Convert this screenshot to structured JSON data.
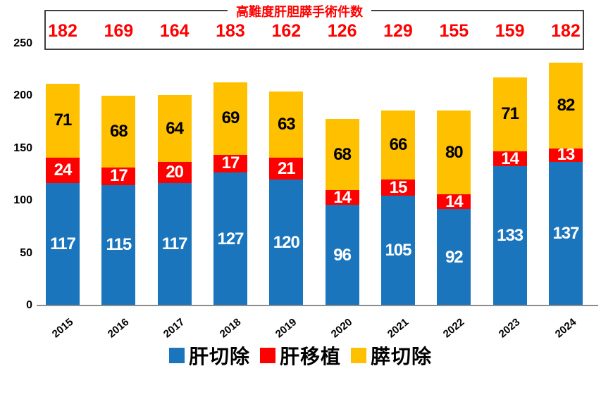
{
  "colors": {
    "background": "#FFFFFF",
    "box_border": "#3F3F3F",
    "title_text": "#FF0000",
    "annotation_text": "#FF0000",
    "axis_line": "#8C8C8C",
    "tick_label": "#000000"
  },
  "chart_data": {
    "type": "bar",
    "stacked": true,
    "title": "高難度肝胆膵手術件数",
    "categories": [
      "2015",
      "2016",
      "2017",
      "2018",
      "2019",
      "2020",
      "2021",
      "2022",
      "2023",
      "2024"
    ],
    "series": [
      {
        "name": "肝切除",
        "color": "#1B75BC",
        "label_color": "#FFFFFF",
        "values": [
          117,
          115,
          117,
          127,
          120,
          96,
          105,
          92,
          133,
          137
        ]
      },
      {
        "name": "肝移植",
        "color": "#FF0000",
        "label_color": "#FFFFFF",
        "values": [
          24,
          17,
          20,
          17,
          21,
          14,
          15,
          14,
          14,
          13
        ]
      },
      {
        "name": "膵切除",
        "color": "#FFC000",
        "label_color": "#000000",
        "values": [
          71,
          68,
          64,
          69,
          63,
          68,
          66,
          80,
          71,
          82
        ]
      }
    ],
    "annotation_values": [
      182,
      169,
      164,
      183,
      162,
      126,
      129,
      155,
      159,
      182
    ],
    "y_ticks": [
      0,
      50,
      100,
      150,
      200,
      250
    ],
    "ylim": [
      0,
      250
    ],
    "grid": false,
    "legend_position": "bottom"
  }
}
